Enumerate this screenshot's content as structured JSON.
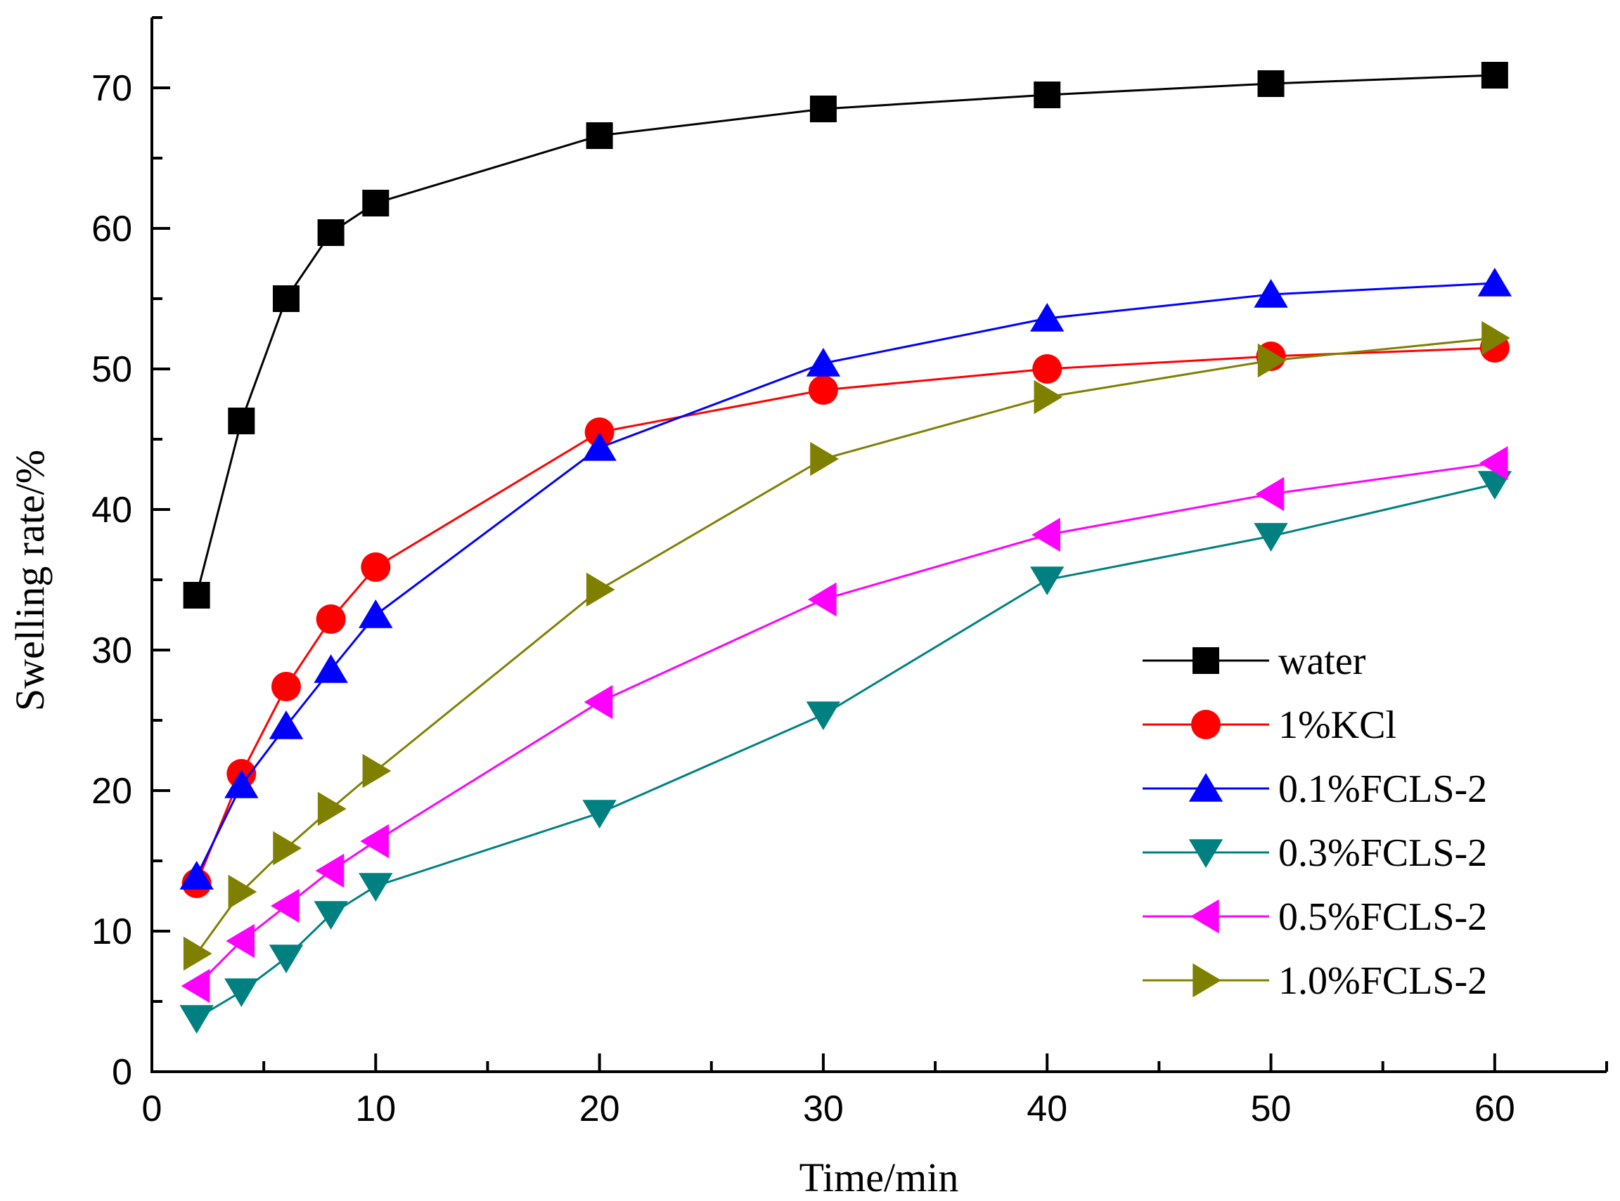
{
  "chart_data": {
    "type": "line",
    "xlabel": "Time/min",
    "ylabel": "Swelling rate/%",
    "xlim": [
      0,
      65
    ],
    "ylim": [
      0,
      75
    ],
    "x_ticks": [
      0,
      10,
      20,
      30,
      40,
      50,
      60
    ],
    "y_ticks": [
      0,
      10,
      20,
      30,
      40,
      50,
      60,
      70
    ],
    "x_minor_step": 5,
    "y_minor_step": 5,
    "grid": false,
    "legend_position": "bottom-right",
    "x": [
      2,
      4,
      6,
      8,
      10,
      20,
      30,
      40,
      50,
      60
    ],
    "series": [
      {
        "name": "water",
        "color": "#000000",
        "marker": "square",
        "values": [
          33.9,
          46.3,
          55.0,
          59.7,
          61.8,
          66.6,
          68.5,
          69.5,
          70.3,
          70.9
        ]
      },
      {
        "name": "1%KCl",
        "color": "#ff0000",
        "marker": "circle",
        "values": [
          13.4,
          21.2,
          27.4,
          32.2,
          35.9,
          45.5,
          48.5,
          50.0,
          50.9,
          51.5
        ]
      },
      {
        "name": "0.1%FCLS-2",
        "color": "#0000ff",
        "marker": "triangle-up",
        "values": [
          13.9,
          20.4,
          24.6,
          28.6,
          32.5,
          44.4,
          50.4,
          53.6,
          55.3,
          56.1
        ]
      },
      {
        "name": "0.3%FCLS-2",
        "color": "#008080",
        "marker": "triangle-down",
        "values": [
          3.8,
          5.7,
          8.1,
          11.2,
          13.2,
          18.4,
          25.4,
          35.0,
          38.1,
          41.8
        ]
      },
      {
        "name": "0.5%FCLS-2",
        "color": "#ff00ff",
        "marker": "triangle-left",
        "values": [
          6.1,
          9.3,
          11.8,
          14.3,
          16.4,
          26.3,
          33.6,
          38.2,
          41.1,
          43.3
        ]
      },
      {
        "name": "1.0%FCLS-2",
        "color": "#808000",
        "marker": "triangle-right",
        "values": [
          8.4,
          12.8,
          15.9,
          18.7,
          21.4,
          34.3,
          43.6,
          48.0,
          50.6,
          52.2
        ]
      }
    ]
  }
}
